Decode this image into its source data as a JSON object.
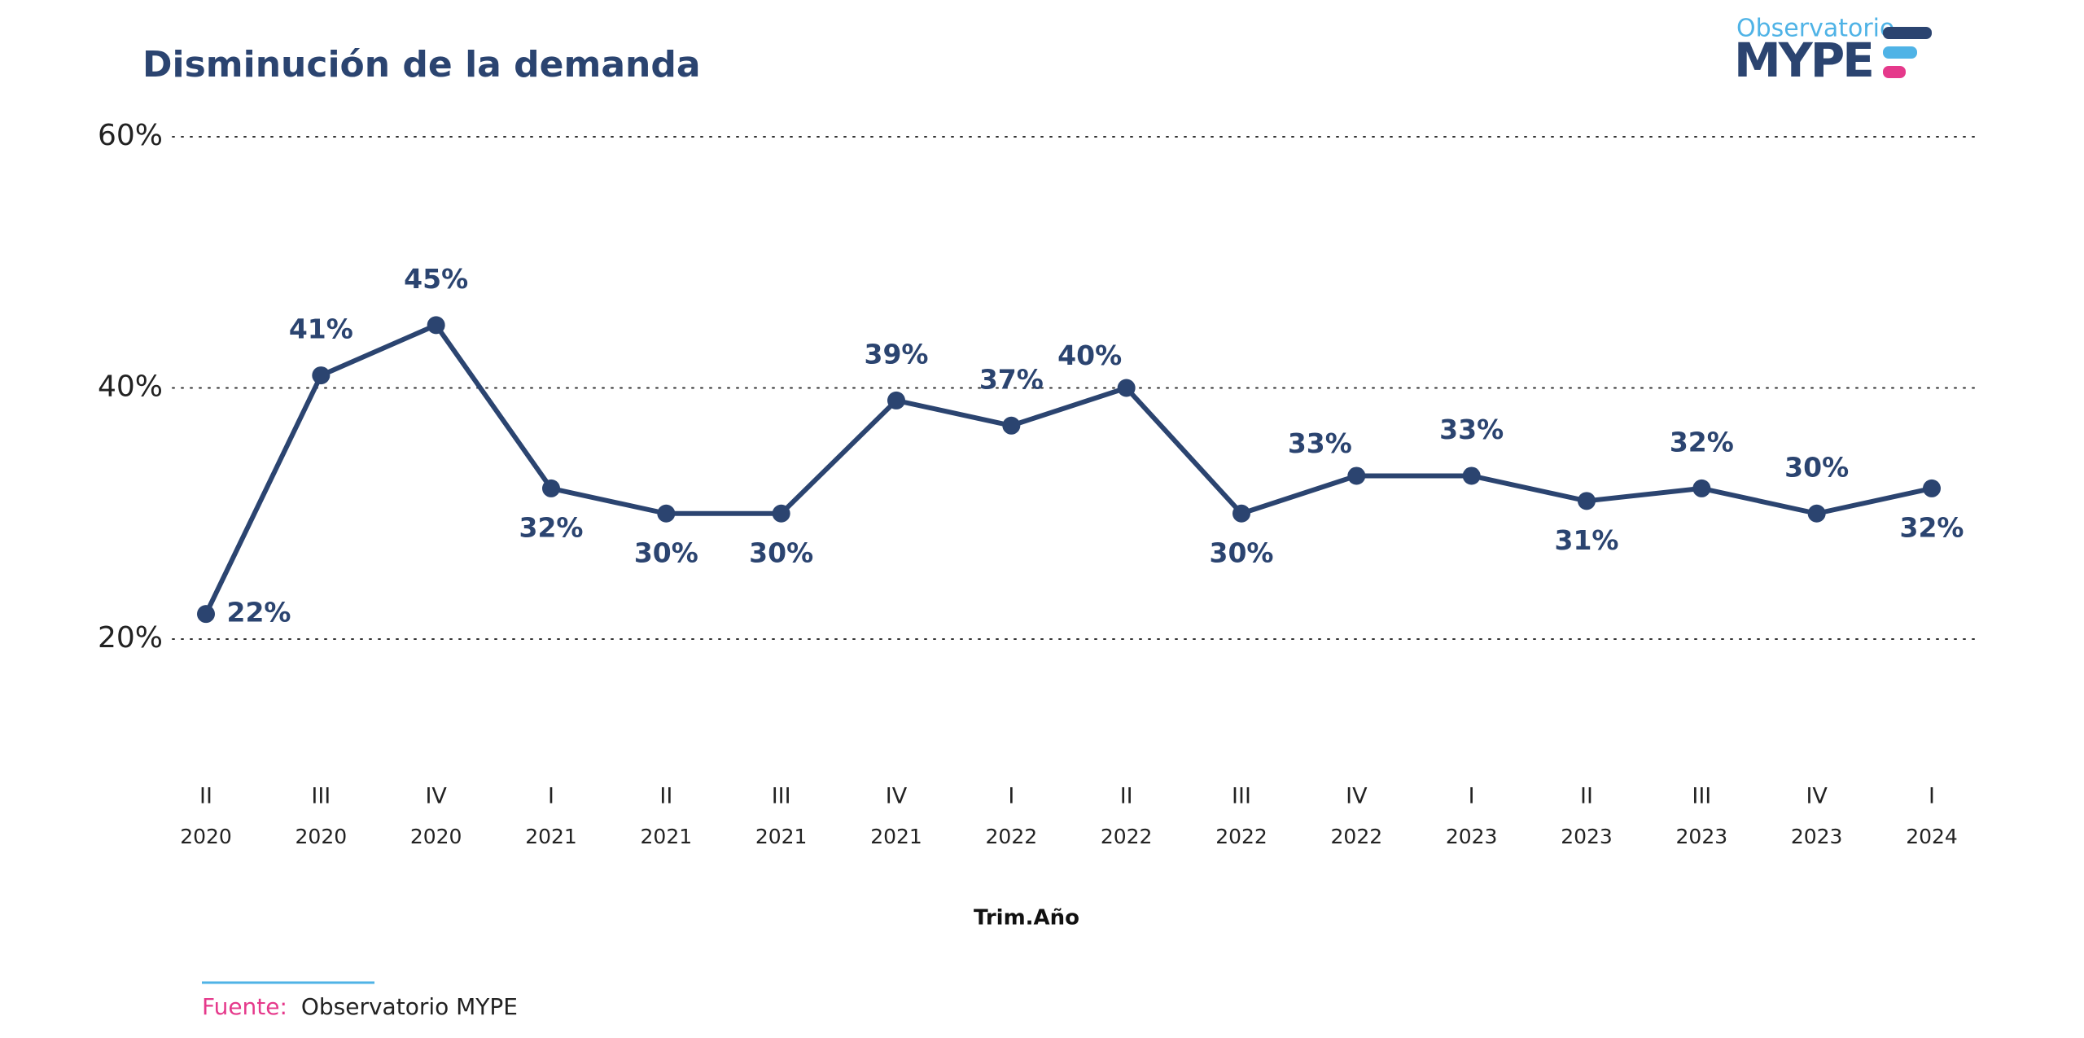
{
  "chart_data": {
    "type": "line",
    "title": "Disminución de la demanda",
    "x_label": "Trim.Año",
    "categories": [
      [
        "II",
        "2020"
      ],
      [
        "III",
        "2020"
      ],
      [
        "IV",
        "2020"
      ],
      [
        "I",
        "2021"
      ],
      [
        "II",
        "2021"
      ],
      [
        "III",
        "2021"
      ],
      [
        "IV",
        "2021"
      ],
      [
        "I",
        "2022"
      ],
      [
        "II",
        "2022"
      ],
      [
        "III",
        "2022"
      ],
      [
        "IV",
        "2022"
      ],
      [
        "I",
        "2023"
      ],
      [
        "II",
        "2023"
      ],
      [
        "III",
        "2023"
      ],
      [
        "IV",
        "2023"
      ],
      [
        "I",
        "2024"
      ]
    ],
    "series": [
      {
        "color": "#2b4470",
        "values": [
          22,
          41,
          45,
          32,
          30,
          30,
          39,
          37,
          40,
          30,
          33,
          33,
          31,
          32,
          30,
          32
        ],
        "value_labels": [
          "22%",
          "41%",
          "45%",
          "32%",
          "30%",
          "30%",
          "39%",
          "37%",
          "40%",
          "30%",
          "33%",
          "33%",
          "31%",
          "32%",
          "30%",
          "32%"
        ]
      }
    ],
    "ylim": [
      20,
      60
    ],
    "yticks": [
      {
        "value": 20,
        "label": "20%"
      },
      {
        "value": 40,
        "label": "40%"
      },
      {
        "value": 60,
        "label": "60%"
      }
    ],
    "grid": true
  },
  "source": {
    "label": "Fuente:",
    "text": "Observatorio MYPE"
  },
  "logo": {
    "top": "Observatorio",
    "main": "MYPE"
  }
}
